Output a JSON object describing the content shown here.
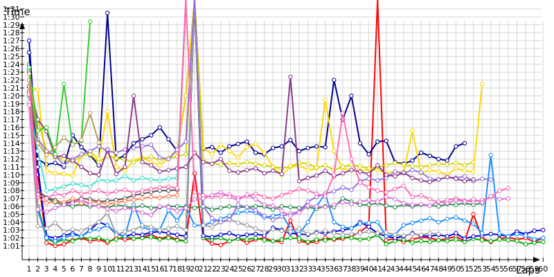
{
  "chart_data": {
    "type": "line",
    "xlabel": "Laps",
    "ylabel": "Time",
    "x_ticks": [
      "1",
      "2",
      "3",
      "4",
      "5",
      "6",
      "7",
      "8",
      "9",
      "10",
      "11",
      "12",
      "13",
      "14",
      "15",
      "16",
      "17",
      "18",
      "19",
      "20",
      "21",
      "22",
      "23",
      "24",
      "25",
      "26",
      "27",
      "28",
      "29",
      "30",
      "31",
      "32",
      "33",
      "34",
      "35",
      "36",
      "37",
      "38",
      "39",
      "40",
      "41",
      "42",
      "43",
      "44",
      "45",
      "46",
      "47",
      "48",
      "49",
      "50",
      "51",
      "52",
      "53",
      "54",
      "55",
      "56",
      "57",
      "58",
      "59",
      "60"
    ],
    "y_ticks": [
      "1:01",
      "1:02",
      "1:03",
      "1:04",
      "1:05",
      "1:06",
      "1:07",
      "1:08",
      "1:09",
      "1:10",
      "1:11",
      "1:12",
      "1:13",
      "1:14",
      "1:15",
      "1:16",
      "1:17",
      "1:18",
      "1:19",
      "1:20",
      "1:21",
      "1:22",
      "1:23",
      "1:24",
      "1:25",
      "1:26",
      "1:27",
      "1:28",
      "1:29",
      "1:30",
      "1:31"
    ],
    "xlim": [
      1,
      60
    ],
    "ylim": [
      60.3,
      92.2
    ],
    "grid": true,
    "series": [
      {
        "color": "#ff0000",
        "values": [
          83,
          70,
          61.4,
          61,
          61.2,
          61.7,
          62,
          61.6,
          61.8,
          61.4,
          62,
          61.8,
          61.9,
          62.1,
          62.4,
          61.9,
          62.2,
          61.8,
          61.6,
          70.2,
          62,
          61.3,
          61.1,
          61.6,
          61.9,
          61.4,
          61.8,
          62,
          61.6,
          61.5,
          64.2,
          61.6,
          61.4,
          61.5,
          62,
          61.8,
          61.9,
          62.2,
          62.8,
          63.6,
          96,
          61.7,
          61.9,
          61.5,
          61.8,
          62.1,
          62,
          61.7,
          61.9,
          62.2,
          61.6,
          65,
          62,
          61.5,
          61.9,
          62.1,
          61.8,
          62,
          61.5,
          62
        ]
      },
      {
        "color": "#00aa00",
        "values": [
          84,
          66,
          61.9,
          61.4,
          61.8,
          61.6,
          62.1,
          61.9,
          62,
          61.6,
          61.8,
          62.2,
          61.9,
          62,
          62.1,
          61.8,
          62,
          61.7,
          61.6,
          96,
          62,
          61.8,
          62,
          61.6,
          61.9,
          61.8,
          62,
          61.7,
          61.6,
          61.8,
          62,
          61.9,
          61.5,
          61.8,
          61.7,
          61.9,
          62.1,
          62,
          61.8,
          61.9,
          62.4,
          61.2,
          61.6,
          61.8,
          61.4,
          61.6,
          61.5,
          61.7,
          61.6,
          61.8,
          61.5,
          61.9,
          61.7,
          61.6,
          61.8,
          61.7,
          61.6,
          61.2,
          61.4,
          61.5
        ]
      },
      {
        "color": "#0000dd",
        "values": [
          87,
          71,
          62.2,
          62,
          62.3,
          62.6,
          62.2,
          63,
          64,
          63.6,
          62.5,
          62.2,
          62.5,
          62.4,
          62.7,
          62.8,
          62.6,
          62.4,
          62.2,
          96,
          62.3,
          62.1,
          62.4,
          62.6,
          62.2,
          62.4,
          62.5,
          62.3,
          63.3,
          63,
          62.6,
          62.5,
          62.4,
          62.7,
          62.6,
          62.8,
          63,
          63.2,
          64,
          63.4,
          62.6,
          62.2,
          62,
          62.2,
          62.6,
          62.3,
          62.2,
          62.4,
          62.2,
          62.6,
          61.9,
          62.2,
          62.3,
          62.5,
          62.4,
          62.2,
          62.8,
          62.5,
          62.9,
          63
        ]
      },
      {
        "color": "#00008b",
        "values": [
          85.5,
          72,
          71.3,
          71.5,
          71,
          75,
          73.5,
          72.5,
          71.2,
          90.5,
          72,
          72.4,
          74,
          74.5,
          75,
          76,
          74.5,
          73,
          80,
          96,
          73.3,
          73.5,
          72.8,
          73.6,
          73.9,
          74.2,
          72.8,
          72.6,
          73.4,
          73.6,
          74.4,
          73,
          73.4,
          73.6,
          73.5,
          82,
          77,
          80,
          74,
          72.6,
          74.2,
          74.3,
          71.6,
          71.4,
          71.8,
          72.8,
          72.4,
          72,
          71.8,
          73.6,
          74
        ]
      },
      {
        "color": "#ffd700",
        "values": [
          81,
          80.8,
          70.5,
          70.2,
          70.1,
          69.9,
          72.5,
          73,
          72,
          78,
          71,
          70.5,
          71.8,
          72.2,
          71.6,
          71.2,
          72,
          73,
          80,
          96,
          73.4,
          72.6,
          73.8,
          73,
          72.2,
          73.5,
          73.9,
          72.8,
          71,
          70,
          71,
          71.2,
          70.6,
          70.8,
          79.5,
          73,
          70.8,
          70.6,
          70.5,
          70.7,
          70.6,
          70.2,
          70.4,
          70.3,
          75.6,
          70.2,
          70.6,
          70.4,
          70,
          70.8,
          70.5,
          70.4,
          81.5
        ]
      },
      {
        "color": "#d4d400",
        "values": [
          82,
          77,
          73,
          72.2,
          72,
          71.6,
          72.4,
          72.6,
          71.6,
          72.4,
          72.1,
          71.9,
          71.6,
          72,
          72.3,
          71.8,
          72.1,
          72.3,
          72.6,
          96,
          71.8,
          71.4,
          71.3,
          71.5,
          71.3,
          71.6,
          71.4,
          71.2,
          71,
          70.8,
          71.1,
          71.5,
          71.4,
          70.9,
          71.2,
          70.6,
          71,
          71.3,
          71.1,
          70.8,
          71,
          71.2,
          71.5,
          71.3,
          71.1,
          71,
          71.2,
          71.4,
          71.3,
          71.5,
          71.2,
          71.6
        ]
      },
      {
        "color": "#1e90ff",
        "values": [
          80,
          65.5,
          62,
          61.6,
          62,
          62.4,
          62.2,
          62.9,
          63.1,
          63.6,
          62.6,
          62.2,
          66.2,
          63.4,
          63,
          63,
          65.5,
          64.2,
          66,
          63.6,
          63.6,
          64,
          64.4,
          64.8,
          65.2,
          65.4,
          65.2,
          64.6,
          64.8,
          65,
          63.2,
          62.5,
          64,
          66,
          67.6,
          64,
          63.4,
          63.2,
          63.8,
          63.9,
          64,
          62.2,
          62.4,
          63.6,
          63.9,
          64.2,
          64.5,
          64,
          64.4,
          64.6,
          64.2,
          63.8,
          62.6,
          72.5,
          62.6,
          62.2,
          62.5,
          62.3,
          61.8,
          62
        ]
      },
      {
        "color": "#40e0d0",
        "values": [
          79,
          73,
          68,
          68.2,
          68.5,
          68.9,
          68.7,
          68.5,
          69.4,
          69.2,
          69.3,
          69.8,
          69.3,
          69.6,
          69.4,
          69.3,
          69.5,
          69.6,
          96
        ]
      },
      {
        "color": "#2e8b57",
        "values": [
          83.5,
          67.5,
          67,
          66.5,
          66.2,
          66,
          66.3,
          66,
          66.1,
          65.8,
          66.2,
          66,
          65.8,
          66.1,
          65.8,
          65.9,
          66,
          66,
          65.9,
          65.8,
          66,
          65.6,
          65.8,
          66,
          65.9,
          65.9,
          66,
          66,
          65.6,
          66,
          65.9,
          65.8,
          65.9,
          65.7,
          66,
          65.9,
          67,
          66.6,
          66.2,
          66.2,
          66.4,
          66.1,
          65.9,
          66.2,
          66,
          66.2,
          66.1,
          66,
          66.3,
          66.2,
          66.4,
          66.2,
          66.4
        ]
      },
      {
        "color": "#555555",
        "values": [
          80.5,
          68,
          67.1,
          66.8,
          66.4,
          66.6,
          67,
          66.9,
          66.6,
          66.7,
          66.8,
          67,
          67.4,
          67.6,
          67.8,
          68,
          68,
          68.1,
          96
        ]
      },
      {
        "color": "#ff7f50",
        "values": [
          80.2,
          67.2,
          66.4,
          66.6,
          66.5,
          67,
          66.4,
          66.6,
          66.5,
          66.3,
          66.4,
          66.7,
          66.8,
          67,
          67.2,
          67.1,
          67.3,
          67.4,
          96
        ]
      },
      {
        "color": "#a0a0a0",
        "values": [
          79.2,
          63.5,
          63.2,
          63.9,
          62.8,
          63.1,
          62.9,
          63.4,
          64,
          65.2,
          62.4,
          62.8,
          63,
          63.6,
          63.4,
          63,
          63.2,
          63.5,
          63,
          96,
          63.6,
          63.4,
          64,
          64.4,
          63.9,
          63.6,
          63.2,
          62.7,
          63.1,
          62.9,
          62.8,
          63.2,
          62.5,
          62.6,
          62.9,
          62.6,
          62.4,
          62.5,
          62.6,
          62.8,
          62.6,
          62.7,
          62.4,
          62.3,
          62.5,
          62.4,
          62.6,
          62.5
        ]
      },
      {
        "color": "#9370db",
        "values": [
          83.2,
          74.5,
          73,
          72.5,
          71.2,
          72,
          72.6,
          73,
          73.6,
          73,
          72.8,
          73.2,
          73.4,
          73.6,
          73.8,
          72.2,
          72,
          73.2,
          74.2,
          96,
          66,
          64.5,
          64,
          64.3,
          66.2,
          65.9,
          65.5,
          64.8,
          64.3,
          64.7,
          65.1,
          65.3,
          66.6,
          67.2,
          67.6,
          67.9,
          68.4,
          68.1,
          69.2,
          69.5,
          69.3,
          69.6,
          70.4,
          70.2,
          70.6,
          70.3,
          69.5,
          69.4,
          69.7,
          69.6,
          69.8,
          69.2,
          69.5,
          69.4
        ]
      },
      {
        "color": "#8b3a8b",
        "values": [
          81.2,
          77,
          75.5,
          72.3,
          72.4,
          71.8,
          71,
          70.2,
          70,
          73.2,
          70.1,
          71,
          80,
          71.6,
          71.2,
          70.4,
          70.6,
          70.8,
          71,
          72.8,
          71.6,
          71.4,
          72,
          70.5,
          70.3,
          70.6,
          70.8,
          70.2,
          70.5,
          70.1,
          82.4,
          69.2,
          69.6,
          69.9,
          70.5,
          69.8,
          70.2,
          70.6,
          70.4,
          70.1,
          71.2,
          70,
          69.8,
          70.3,
          69.6,
          69.3,
          69.1,
          69.4,
          69.7,
          69.5,
          69.2,
          69.4
        ]
      },
      {
        "color": "#ff69b4",
        "values": [
          82,
          67.5,
          67,
          67.6,
          67.4,
          68,
          67.6,
          67.8,
          68,
          67.6,
          67.9,
          68.1,
          67.7,
          68,
          68.2,
          68.4,
          68.5,
          68.3,
          96,
          67.8,
          67.4,
          67.2,
          67.3,
          67.5,
          67.1,
          67.3,
          67.6,
          67.2,
          67,
          67.4,
          67.8,
          68.2,
          68,
          67.6,
          67.3,
          70,
          77.8,
          72,
          69,
          68.4,
          68,
          67.8,
          68.2,
          68.6,
          67.2,
          67.4,
          66.9,
          66.5,
          66.8,
          67,
          66.7,
          66.6,
          66.8,
          67.2,
          68,
          68.3
        ]
      },
      {
        "color": "#da70d6",
        "values": [
          78.8,
          65.6,
          65.3,
          65.8,
          66.2,
          66.4,
          66.9,
          66.2,
          66,
          65.7,
          65.4,
          65.8,
          65.6,
          65.2,
          64.9,
          66,
          65.9,
          65.4,
          65.8,
          66.9,
          67,
          67.4,
          67.8,
          67.2,
          66.8,
          67.5,
          66.9,
          66.2,
          66.1,
          65.4,
          64.8,
          65.2,
          66.1,
          66,
          65.9,
          66.2,
          66.5,
          66.3,
          66.6,
          66.8,
          66.6,
          67.2,
          66.9,
          66.4,
          66.2,
          66.3,
          66.1,
          66.6,
          66.4,
          66.8,
          66.6,
          66.9,
          66.5,
          67.3,
          66.9,
          67
        ]
      },
      {
        "color": "#32cd32",
        "values": [
          83.6,
          75.6,
          76,
          72.6,
          81.5,
          73.8,
          74.3,
          89.4
        ]
      },
      {
        "color": "#b0a050",
        "values": [
          82.8,
          74,
          72.5,
          73.5,
          74.7,
          73.8,
          74.4,
          77.8,
          74.1
        ]
      }
    ]
  }
}
